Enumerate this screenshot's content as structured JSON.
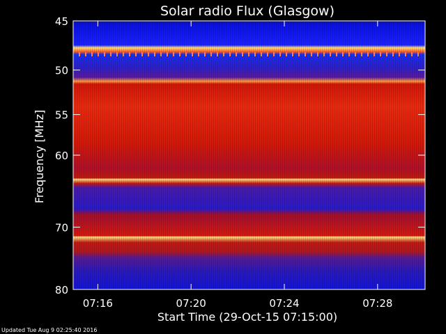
{
  "footer": {
    "updated": "Updated Tue Aug  9 02:25:40 2016"
  },
  "colors": {
    "background": "#000000",
    "axis": "#ffffff",
    "low": "#1a1aff",
    "mid": "#cc1100",
    "high": "#ffe080"
  },
  "chart_data": {
    "type": "heatmap",
    "title": "Solar radio Flux (Glasgow)",
    "xlabel": "Start Time (29-Oct-15 07:15:00)",
    "ylabel": "Frequency [MHz]",
    "xlim": [
      "07:15:00",
      "07:30:00"
    ],
    "ylim": [
      45,
      80
    ],
    "y_scale": "log",
    "y_reversed": true,
    "x_ticks": [
      "07:16",
      "07:20",
      "07:24",
      "07:28"
    ],
    "y_ticks": [
      45,
      50,
      55,
      60,
      70,
      80
    ],
    "intensity_bands": [
      {
        "from": 45.0,
        "to": 48.5,
        "level": "low"
      },
      {
        "from": 48.5,
        "to": 49.2,
        "level": "high"
      },
      {
        "from": 49.2,
        "to": 52.5,
        "level": "low"
      },
      {
        "from": 52.5,
        "to": 53.0,
        "level": "high"
      },
      {
        "from": 53.0,
        "to": 63.5,
        "level": "mid"
      },
      {
        "from": 63.5,
        "to": 64.2,
        "level": "high"
      },
      {
        "from": 64.2,
        "to": 67.5,
        "level": "low"
      },
      {
        "from": 67.5,
        "to": 72.0,
        "level": "mid"
      },
      {
        "from": 72.0,
        "to": 72.6,
        "level": "high"
      },
      {
        "from": 72.6,
        "to": 75.0,
        "level": "mid"
      },
      {
        "from": 75.0,
        "to": 80.0,
        "level": "low"
      }
    ]
  }
}
